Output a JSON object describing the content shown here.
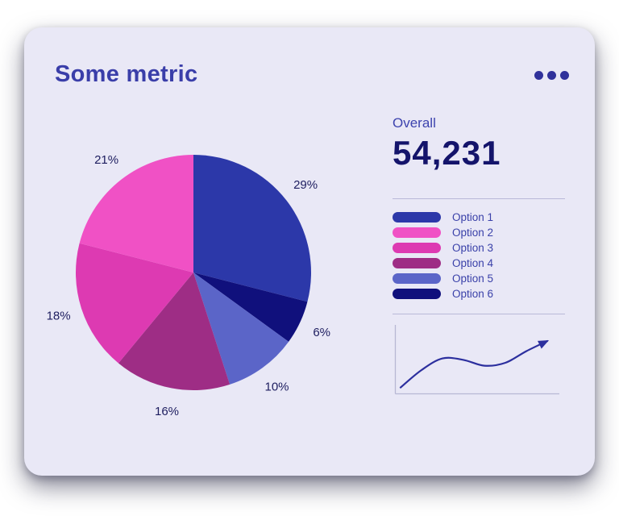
{
  "card": {
    "title": "Some metric"
  },
  "kpi": {
    "label": "Overall",
    "value": "54,231"
  },
  "colors": {
    "card_background": "#e9e8f6",
    "title": "#3a3ea9",
    "kpi_value": "#14146b",
    "divider": "#b9b9d8",
    "percent_label": "#1d1d5f"
  },
  "chart_data": [
    {
      "type": "pie",
      "title": "Some metric",
      "unit": "%",
      "start_angle_deg_from_top": 0,
      "direction": "clockwise",
      "slices_clockwise_from_top": [
        {
          "label": "Option 1",
          "value": 29,
          "pct_label": "29%",
          "color": "#2c38a9"
        },
        {
          "label": "Option 6",
          "value": 6,
          "pct_label": "6%",
          "color": "#10107c"
        },
        {
          "label": "Option 5",
          "value": 10,
          "pct_label": "10%",
          "color": "#5b65c8"
        },
        {
          "label": "Option 4",
          "value": 16,
          "pct_label": "16%",
          "color": "#9e2d85"
        },
        {
          "label": "Option 3",
          "value": 18,
          "pct_label": "18%",
          "color": "#dd3ab2"
        },
        {
          "label": "Option 2",
          "value": 21,
          "pct_label": "21%",
          "color": "#f051c5"
        }
      ],
      "legend_position": "right",
      "legend": [
        {
          "label": "Option 1",
          "color": "#2c38a9"
        },
        {
          "label": "Option 2",
          "color": "#f051c5"
        },
        {
          "label": "Option 3",
          "color": "#dd3ab2"
        },
        {
          "label": "Option 4",
          "color": "#9e2d85"
        },
        {
          "label": "Option 5",
          "color": "#5b65c8"
        },
        {
          "label": "Option 6",
          "color": "#10107c"
        }
      ]
    },
    {
      "type": "line",
      "name": "trend-sparkline",
      "x": [
        0,
        1,
        2,
        3,
        4,
        5,
        6,
        7
      ],
      "y": [
        6,
        30,
        46,
        44,
        36,
        40,
        56,
        70
      ],
      "ylim": [
        0,
        80
      ],
      "color": "#2c2f9e",
      "arrow_end": true,
      "axes": "left and bottom lines only, no ticks or labels",
      "grid": false
    }
  ]
}
